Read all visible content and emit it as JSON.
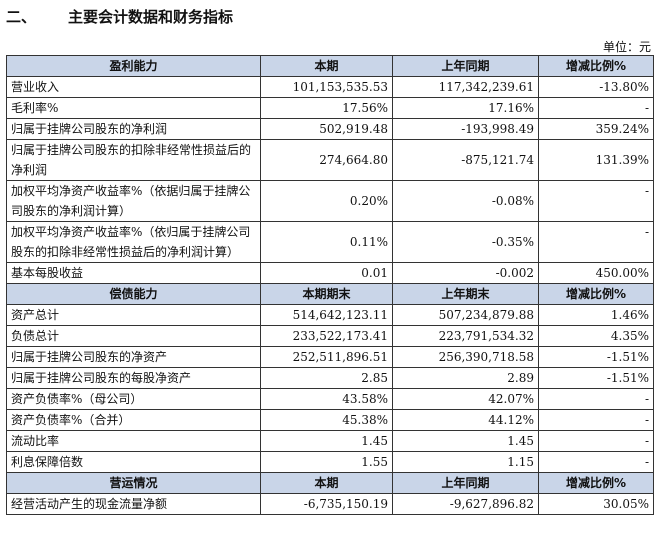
{
  "section": {
    "number": "二、",
    "title": "主要会计数据和财务指标"
  },
  "unit": "单位：元",
  "groups": [
    {
      "headers": [
        "盈利能力",
        "本期",
        "上年同期",
        "增减比例%"
      ],
      "rows": [
        [
          "营业收入",
          "101,153,535.53",
          "117,342,239.61",
          "-13.80%"
        ],
        [
          "毛利率%",
          "17.56%",
          "17.16%",
          "-"
        ],
        [
          "归属于挂牌公司股东的净利润",
          "502,919.48",
          "-193,998.49",
          "359.24%"
        ],
        [
          "归属于挂牌公司股东的扣除非经常性损益后的净利润",
          "274,664.80",
          "-875,121.74",
          "131.39%"
        ],
        [
          "加权平均净资产收益率%（依据归属于挂牌公司股东的净利润计算）",
          "0.20%",
          "-0.08%",
          "-"
        ],
        [
          "加权平均净资产收益率%（依归属于挂牌公司股东的扣除非经常性损益后的净利润计算）",
          "0.11%",
          "-0.35%",
          "-"
        ],
        [
          "基本每股收益",
          "0.01",
          "-0.002",
          "450.00%"
        ]
      ]
    },
    {
      "headers": [
        "偿债能力",
        "本期期末",
        "上年期末",
        "增减比例%"
      ],
      "rows": [
        [
          "资产总计",
          "514,642,123.11",
          "507,234,879.88",
          "1.46%"
        ],
        [
          "负债总计",
          "233,522,173.41",
          "223,791,534.32",
          "4.35%"
        ],
        [
          "归属于挂牌公司股东的净资产",
          "252,511,896.51",
          "256,390,718.58",
          "-1.51%"
        ],
        [
          "归属于挂牌公司股东的每股净资产",
          "2.85",
          "2.89",
          "-1.51%"
        ],
        [
          "资产负债率%（母公司）",
          "43.58%",
          "42.07%",
          "-"
        ],
        [
          "资产负债率%（合并）",
          "45.38%",
          "44.12%",
          "-"
        ],
        [
          "流动比率",
          "1.45",
          "1.45",
          "-"
        ],
        [
          "利息保障倍数",
          "1.55",
          "1.15",
          "-"
        ]
      ]
    },
    {
      "headers": [
        "营运情况",
        "本期",
        "上年同期",
        "增减比例%"
      ],
      "rows": [
        [
          "经营活动产生的现金流量净额",
          "-6,735,150.19",
          "-9,627,896.82",
          "30.05%"
        ]
      ]
    }
  ]
}
